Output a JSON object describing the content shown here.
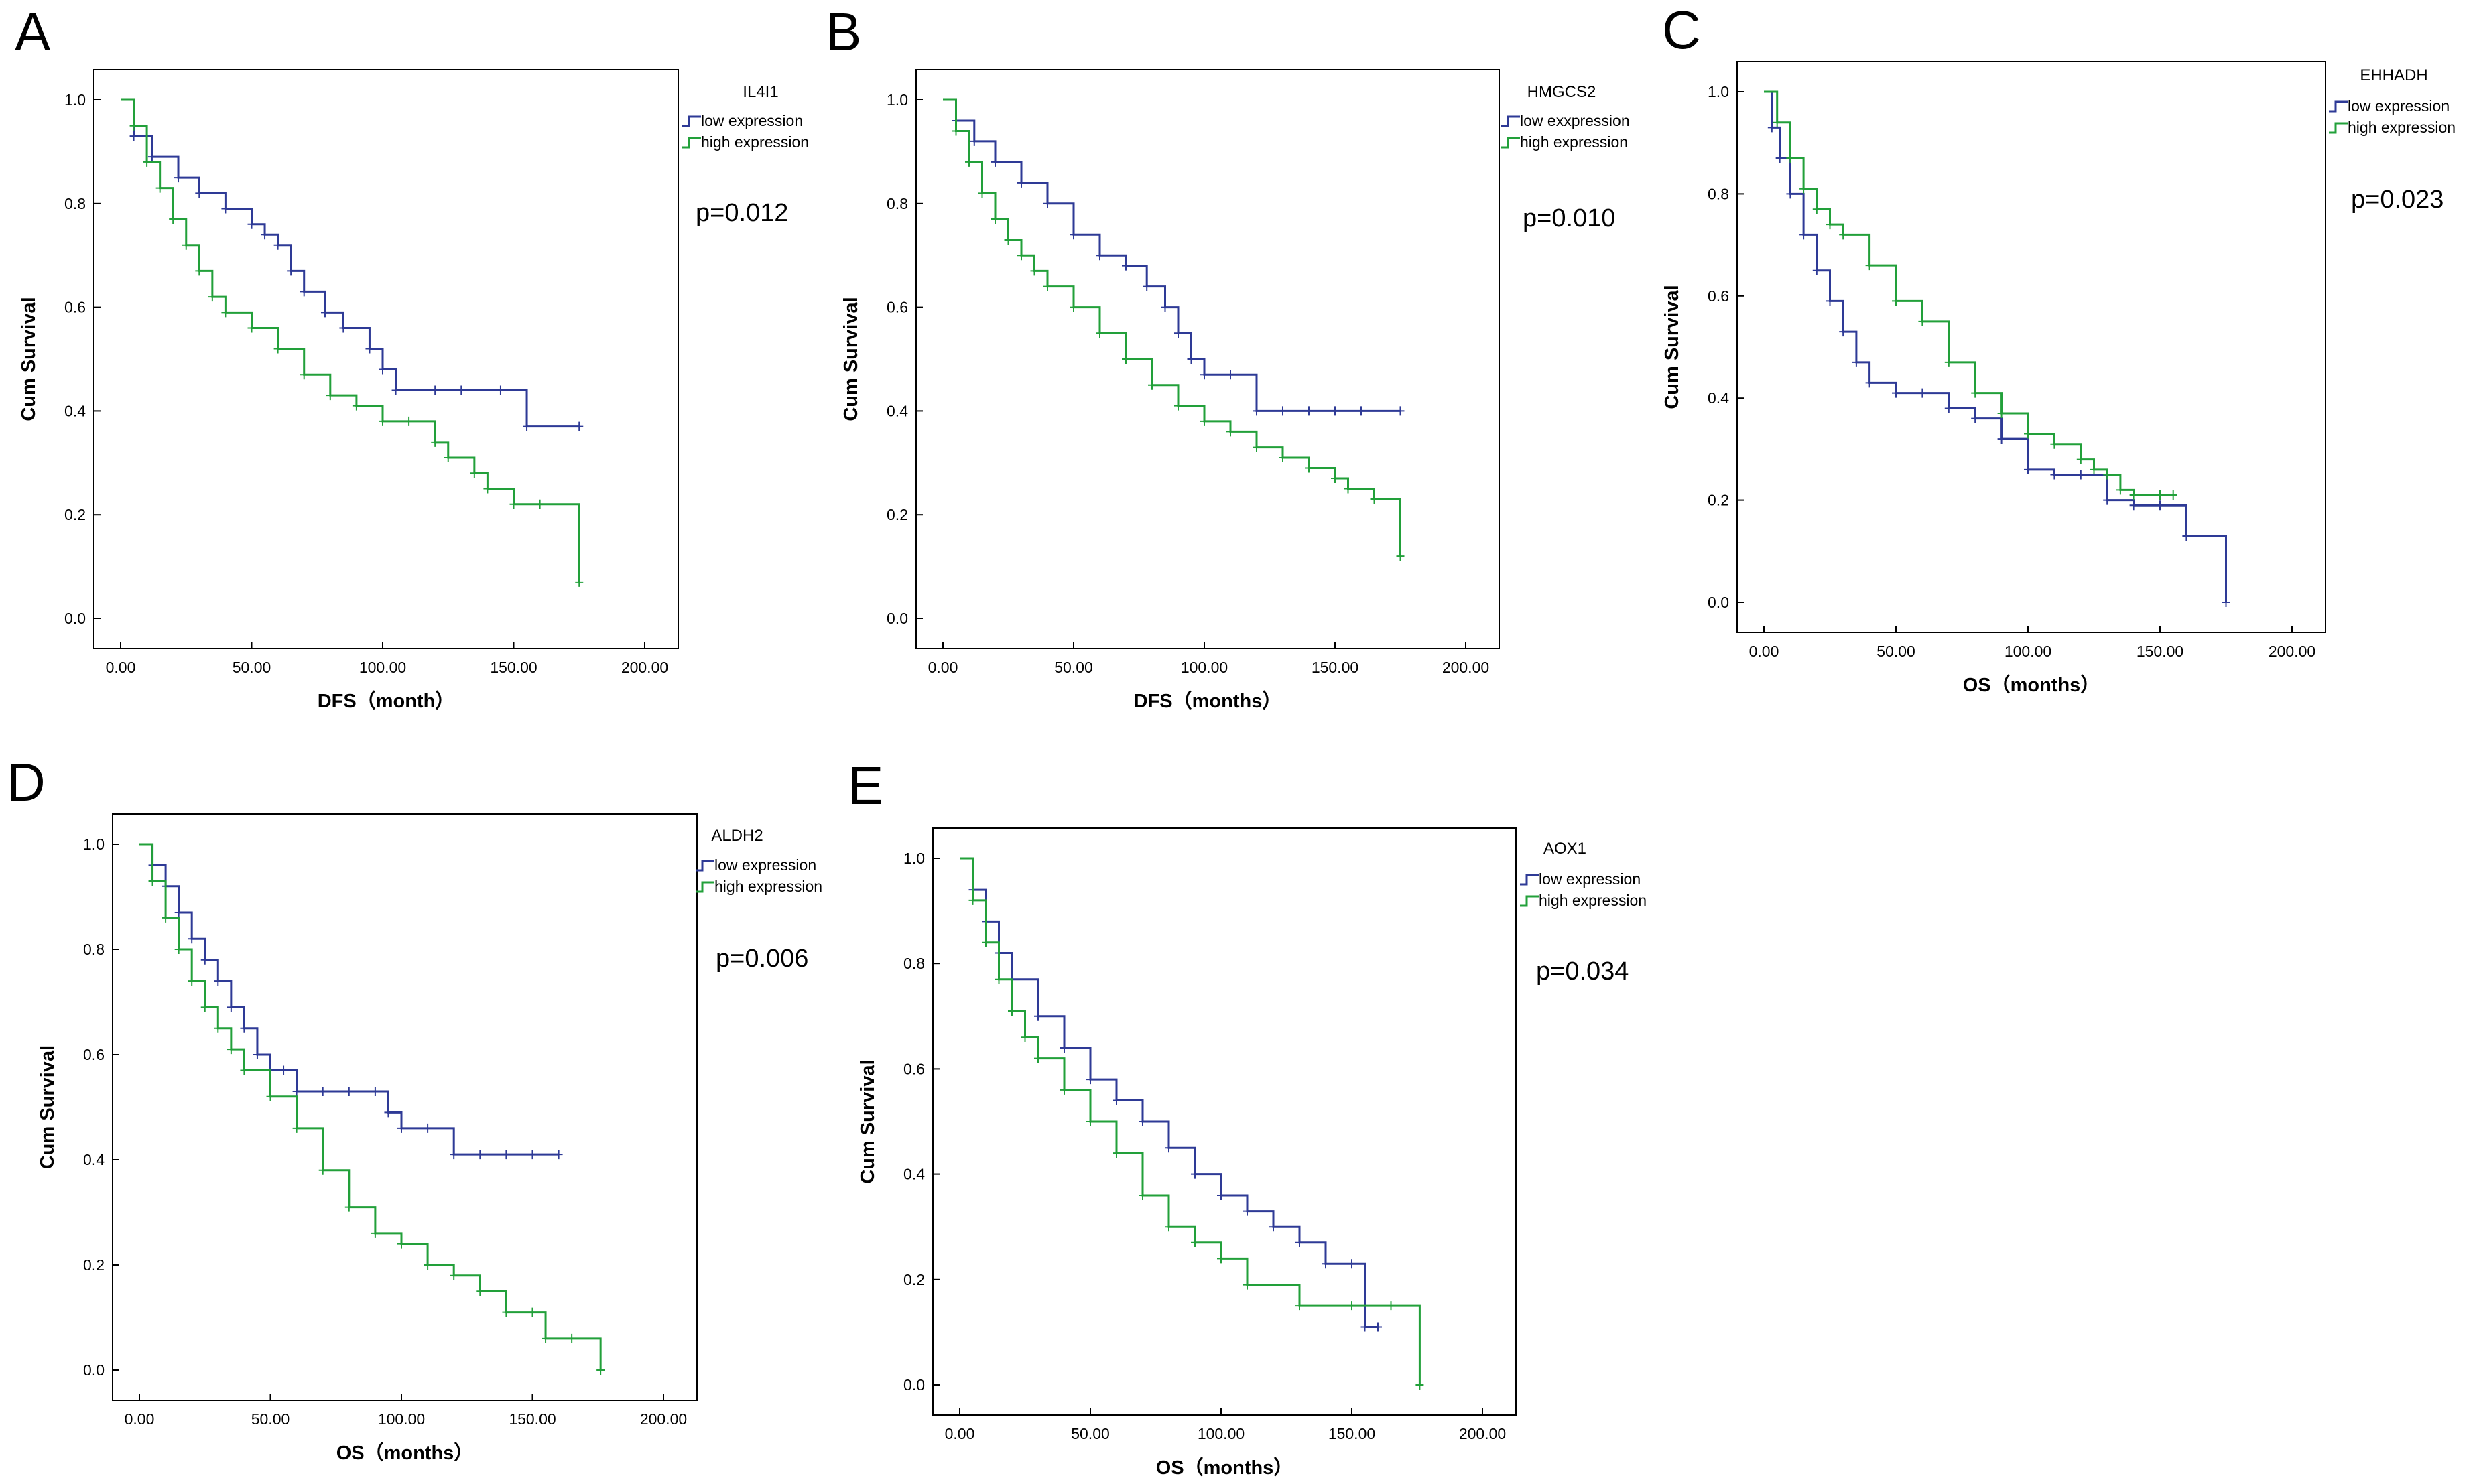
{
  "colors": {
    "low": "#2E3A96",
    "high": "#22A03A",
    "axis": "#000000"
  },
  "chart_data": [
    {
      "panel": "A",
      "type": "line",
      "step": true,
      "title": "IL4I1",
      "pvalue": "p=0.012",
      "xlabel": "DFS（month）",
      "ylabel": "Cum Survival",
      "xlim": [
        0,
        200
      ],
      "ylim": [
        0,
        1
      ],
      "xticks": [
        "0.00",
        "50.00",
        "100.00",
        "150.00",
        "200.00"
      ],
      "yticks": [
        "0.0",
        "0.2",
        "0.4",
        "0.6",
        "0.8",
        "1.0"
      ],
      "series": [
        {
          "name": "low expression",
          "x": [
            0,
            5,
            12,
            22,
            30,
            40,
            50,
            55,
            60,
            65,
            70,
            78,
            85,
            95,
            100,
            105,
            120,
            130,
            145,
            155,
            175
          ],
          "y": [
            1.0,
            0.93,
            0.89,
            0.85,
            0.82,
            0.79,
            0.76,
            0.74,
            0.72,
            0.67,
            0.63,
            0.59,
            0.56,
            0.52,
            0.48,
            0.44,
            0.44,
            0.44,
            0.44,
            0.37,
            0.37
          ]
        },
        {
          "name": "high expression",
          "x": [
            0,
            5,
            10,
            15,
            20,
            25,
            30,
            35,
            40,
            50,
            60,
            70,
            80,
            90,
            100,
            110,
            120,
            125,
            135,
            140,
            150,
            160,
            175
          ],
          "y": [
            1.0,
            0.95,
            0.88,
            0.83,
            0.77,
            0.72,
            0.67,
            0.62,
            0.59,
            0.56,
            0.52,
            0.47,
            0.43,
            0.41,
            0.38,
            0.38,
            0.34,
            0.31,
            0.28,
            0.25,
            0.22,
            0.22,
            0.07
          ]
        }
      ]
    },
    {
      "panel": "B",
      "type": "line",
      "step": true,
      "title": "HMGCS2",
      "pvalue": "p=0.010",
      "xlabel": "DFS（months）",
      "ylabel": "Cum Survival",
      "xlim": [
        0,
        200
      ],
      "ylim": [
        0,
        1
      ],
      "xticks": [
        "0.00",
        "50.00",
        "100.00",
        "150.00",
        "200.00"
      ],
      "yticks": [
        "0.0",
        "0.2",
        "0.4",
        "0.6",
        "0.8",
        "1.0"
      ],
      "series": [
        {
          "name": "low exxpression",
          "x": [
            0,
            5,
            12,
            20,
            30,
            40,
            50,
            60,
            70,
            78,
            85,
            90,
            95,
            100,
            110,
            120,
            130,
            140,
            150,
            160,
            175
          ],
          "y": [
            1.0,
            0.96,
            0.92,
            0.88,
            0.84,
            0.8,
            0.74,
            0.7,
            0.68,
            0.64,
            0.6,
            0.55,
            0.5,
            0.47,
            0.47,
            0.4,
            0.4,
            0.4,
            0.4,
            0.4,
            0.4
          ]
        },
        {
          "name": "high expression",
          "x": [
            0,
            5,
            10,
            15,
            20,
            25,
            30,
            35,
            40,
            50,
            60,
            70,
            80,
            90,
            100,
            110,
            120,
            130,
            140,
            150,
            155,
            165,
            175
          ],
          "y": [
            1.0,
            0.94,
            0.88,
            0.82,
            0.77,
            0.73,
            0.7,
            0.67,
            0.64,
            0.6,
            0.55,
            0.5,
            0.45,
            0.41,
            0.38,
            0.36,
            0.33,
            0.31,
            0.29,
            0.27,
            0.25,
            0.23,
            0.12
          ]
        }
      ]
    },
    {
      "panel": "C",
      "type": "line",
      "step": true,
      "title": "EHHADH",
      "pvalue": "p=0.023",
      "xlabel": "OS（months）",
      "ylabel": "Cum Survival",
      "xlim": [
        0,
        200
      ],
      "ylim": [
        0,
        1
      ],
      "xticks": [
        "0.00",
        "50.00",
        "100.00",
        "150.00",
        "200.00"
      ],
      "yticks": [
        "0.0",
        "0.2",
        "0.4",
        "0.6",
        "0.8",
        "1.0"
      ],
      "series": [
        {
          "name": "low expression",
          "x": [
            0,
            3,
            6,
            10,
            15,
            20,
            25,
            30,
            35,
            40,
            50,
            60,
            70,
            80,
            90,
            100,
            110,
            120,
            130,
            140,
            150,
            160,
            175
          ],
          "y": [
            1.0,
            0.93,
            0.87,
            0.8,
            0.72,
            0.65,
            0.59,
            0.53,
            0.47,
            0.43,
            0.41,
            0.41,
            0.38,
            0.36,
            0.32,
            0.26,
            0.25,
            0.25,
            0.2,
            0.19,
            0.19,
            0.13,
            0.0
          ]
        },
        {
          "name": "high expression",
          "x": [
            0,
            5,
            10,
            15,
            20,
            25,
            30,
            40,
            50,
            60,
            70,
            80,
            90,
            100,
            110,
            120,
            125,
            130,
            135,
            140,
            150,
            155
          ],
          "y": [
            1.0,
            0.94,
            0.87,
            0.81,
            0.77,
            0.74,
            0.72,
            0.66,
            0.59,
            0.55,
            0.47,
            0.41,
            0.37,
            0.33,
            0.31,
            0.28,
            0.26,
            0.25,
            0.22,
            0.21,
            0.21,
            0.21
          ]
        }
      ]
    },
    {
      "panel": "D",
      "type": "line",
      "step": true,
      "title": "ALDH2",
      "pvalue": "p=0.006",
      "xlabel": "OS（months）",
      "ylabel": "Cum Survival",
      "xlim": [
        0,
        200
      ],
      "ylim": [
        0,
        1
      ],
      "xticks": [
        "0.00",
        "50.00",
        "100.00",
        "150.00",
        "200.00"
      ],
      "yticks": [
        "0.0",
        "0.2",
        "0.4",
        "0.6",
        "0.8",
        "1.0"
      ],
      "series": [
        {
          "name": "low expression",
          "x": [
            0,
            5,
            10,
            15,
            20,
            25,
            30,
            35,
            40,
            45,
            50,
            55,
            60,
            70,
            80,
            90,
            95,
            100,
            110,
            120,
            130,
            140,
            150,
            160
          ],
          "y": [
            1.0,
            0.96,
            0.92,
            0.87,
            0.82,
            0.78,
            0.74,
            0.69,
            0.65,
            0.6,
            0.57,
            0.57,
            0.53,
            0.53,
            0.53,
            0.53,
            0.49,
            0.46,
            0.46,
            0.41,
            0.41,
            0.41,
            0.41,
            0.41
          ]
        },
        {
          "name": "high expression",
          "x": [
            0,
            5,
            10,
            15,
            20,
            25,
            30,
            35,
            40,
            50,
            60,
            70,
            80,
            90,
            100,
            110,
            120,
            130,
            140,
            150,
            155,
            165,
            176
          ],
          "y": [
            1.0,
            0.93,
            0.86,
            0.8,
            0.74,
            0.69,
            0.65,
            0.61,
            0.57,
            0.52,
            0.46,
            0.38,
            0.31,
            0.26,
            0.24,
            0.2,
            0.18,
            0.15,
            0.11,
            0.11,
            0.06,
            0.06,
            0.0
          ]
        }
      ]
    },
    {
      "panel": "E",
      "type": "line",
      "step": true,
      "title": "AOX1",
      "pvalue": "p=0.034",
      "xlabel": "OS（months）",
      "ylabel": "Cum Survival",
      "xlim": [
        0,
        200
      ],
      "ylim": [
        0,
        1
      ],
      "xticks": [
        "0.00",
        "50.00",
        "100.00",
        "150.00",
        "200.00"
      ],
      "yticks": [
        "0.0",
        "0.2",
        "0.4",
        "0.6",
        "0.8",
        "1.0"
      ],
      "series": [
        {
          "name": "low expression",
          "x": [
            0,
            5,
            10,
            15,
            20,
            30,
            40,
            50,
            60,
            70,
            80,
            90,
            100,
            110,
            120,
            130,
            140,
            150,
            155,
            160
          ],
          "y": [
            1.0,
            0.94,
            0.88,
            0.82,
            0.77,
            0.7,
            0.64,
            0.58,
            0.54,
            0.5,
            0.45,
            0.4,
            0.36,
            0.33,
            0.3,
            0.27,
            0.23,
            0.23,
            0.11,
            0.11
          ]
        },
        {
          "name": "high expression",
          "x": [
            0,
            5,
            10,
            15,
            20,
            25,
            30,
            40,
            50,
            60,
            70,
            80,
            90,
            100,
            110,
            130,
            150,
            165,
            176
          ],
          "y": [
            1.0,
            0.92,
            0.84,
            0.77,
            0.71,
            0.66,
            0.62,
            0.56,
            0.5,
            0.44,
            0.36,
            0.3,
            0.27,
            0.24,
            0.19,
            0.15,
            0.15,
            0.15,
            0.0
          ]
        }
      ]
    }
  ]
}
